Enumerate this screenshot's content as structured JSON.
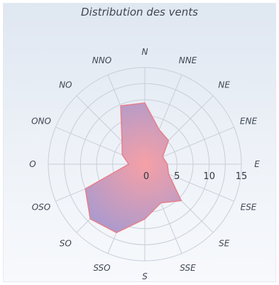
{
  "chart_data": {
    "type": "radar",
    "title": "Distribution des vents",
    "directions": [
      "N",
      "NNE",
      "NE",
      "ENE",
      "E",
      "ESE",
      "SE",
      "SSE",
      "S",
      "SSO",
      "SO",
      "OSO",
      "O",
      "ONO",
      "NO",
      "NNO"
    ],
    "values": [
      9.5,
      5.8,
      5.2,
      3.0,
      3.5,
      4.0,
      8.0,
      6.5,
      8.5,
      11.5,
      12.0,
      10.0,
      2.5,
      3.8,
      5.0,
      9.8
    ],
    "radial_ticks": [
      0,
      5,
      10,
      15
    ],
    "rmax": 15,
    "colors": {
      "fill_start": "#f6a0a6",
      "fill_end": "#8597e2",
      "stroke": "#e87f8a"
    }
  }
}
